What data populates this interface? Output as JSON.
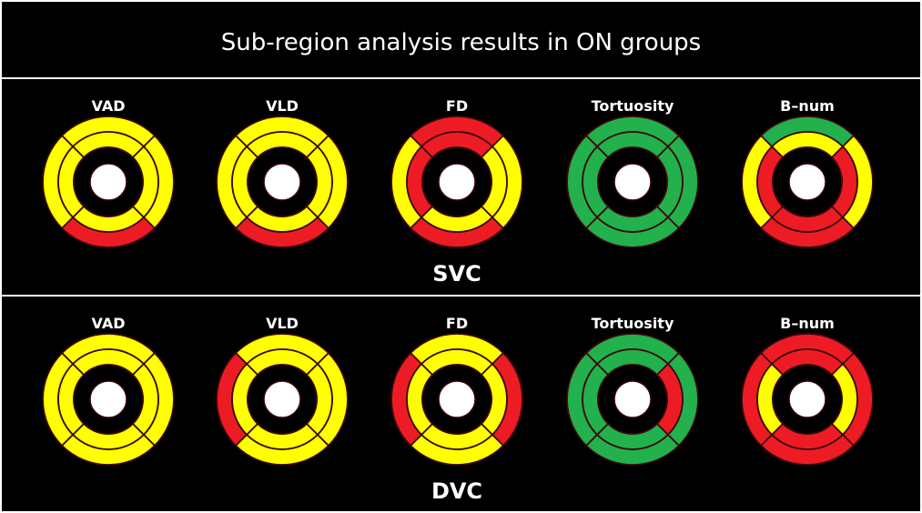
{
  "title": "Sub-region analysis results in ON groups",
  "colors": {
    "yellow": "#ffff00",
    "red": "#ed1c24",
    "green": "#22b14c",
    "outline": "#3a0a0a",
    "center": "#ffffff",
    "background": "#000000"
  },
  "sector_order_note_free": true,
  "groups": [
    {
      "label": "SVC",
      "charts": [
        {
          "label": "VAD",
          "inner": [
            "yellow",
            "yellow",
            "yellow",
            "yellow"
          ],
          "outer": [
            "yellow",
            "yellow",
            "red",
            "yellow"
          ]
        },
        {
          "label": "VLD",
          "inner": [
            "yellow",
            "yellow",
            "yellow",
            "yellow"
          ],
          "outer": [
            "yellow",
            "yellow",
            "red",
            "yellow"
          ]
        },
        {
          "label": "FD",
          "inner": [
            "red",
            "yellow",
            "yellow",
            "red"
          ],
          "outer": [
            "red",
            "yellow",
            "red",
            "yellow"
          ]
        },
        {
          "label": "Tortuosity",
          "inner": [
            "green",
            "green",
            "green",
            "green"
          ],
          "outer": [
            "green",
            "green",
            "green",
            "green"
          ]
        },
        {
          "label": "B–num",
          "inner": [
            "yellow",
            "red",
            "red",
            "red"
          ],
          "outer": [
            "green",
            "yellow",
            "red",
            "yellow"
          ]
        }
      ]
    },
    {
      "label": "DVC",
      "charts": [
        {
          "label": "VAD",
          "inner": [
            "yellow",
            "yellow",
            "yellow",
            "yellow"
          ],
          "outer": [
            "yellow",
            "yellow",
            "yellow",
            "yellow"
          ]
        },
        {
          "label": "VLD",
          "inner": [
            "yellow",
            "yellow",
            "yellow",
            "yellow"
          ],
          "outer": [
            "yellow",
            "yellow",
            "yellow",
            "red"
          ]
        },
        {
          "label": "FD",
          "inner": [
            "yellow",
            "yellow",
            "yellow",
            "yellow"
          ],
          "outer": [
            "yellow",
            "red",
            "yellow",
            "red"
          ]
        },
        {
          "label": "Tortuosity",
          "inner": [
            "green",
            "red",
            "green",
            "green"
          ],
          "outer": [
            "green",
            "green",
            "green",
            "green"
          ]
        },
        {
          "label": "B–num",
          "inner": [
            "red",
            "yellow",
            "red",
            "yellow"
          ],
          "outer": [
            "red",
            "red",
            "red",
            "red"
          ]
        }
      ]
    }
  ]
}
